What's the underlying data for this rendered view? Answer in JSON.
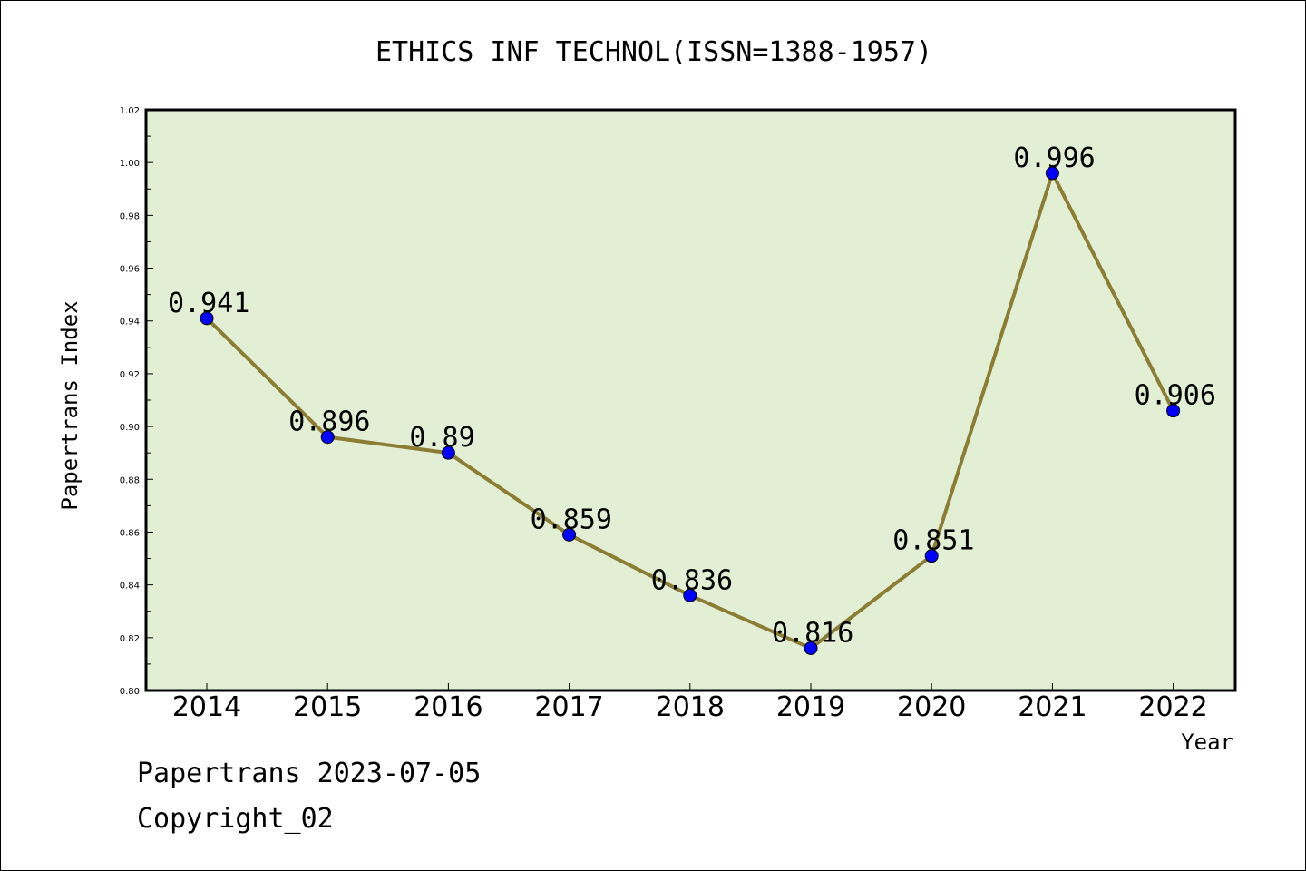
{
  "chart_data": {
    "type": "line",
    "title": "ETHICS INF TECHNOL(ISSN=1388-1957)",
    "xlabel": "Year",
    "ylabel": "Papertrans Index",
    "categories": [
      "2014",
      "2015",
      "2016",
      "2017",
      "2018",
      "2019",
      "2020",
      "2021",
      "2022"
    ],
    "series": [
      {
        "values": [
          0.941,
          0.896,
          0.89,
          0.859,
          0.836,
          0.816,
          0.851,
          0.996,
          0.906
        ],
        "labels": [
          "0.941",
          "0.896",
          "0.89",
          "0.859",
          "0.836",
          "0.816",
          "0.851",
          "0.996",
          "0.906"
        ]
      }
    ],
    "ylim": [
      0.8,
      1.02
    ],
    "yticks": [
      "0.80",
      "0.82",
      "0.84",
      "0.86",
      "0.88",
      "0.90",
      "0.92",
      "0.94",
      "0.96",
      "0.98",
      "1.00",
      "1.02"
    ],
    "grid": false,
    "colors": {
      "plot_bg": "#e2efd5",
      "line": "#8b7d34",
      "marker": "#0000ff"
    }
  },
  "footer": {
    "line1": "Papertrans 2023-07-05",
    "line2": "Copyright_02"
  }
}
